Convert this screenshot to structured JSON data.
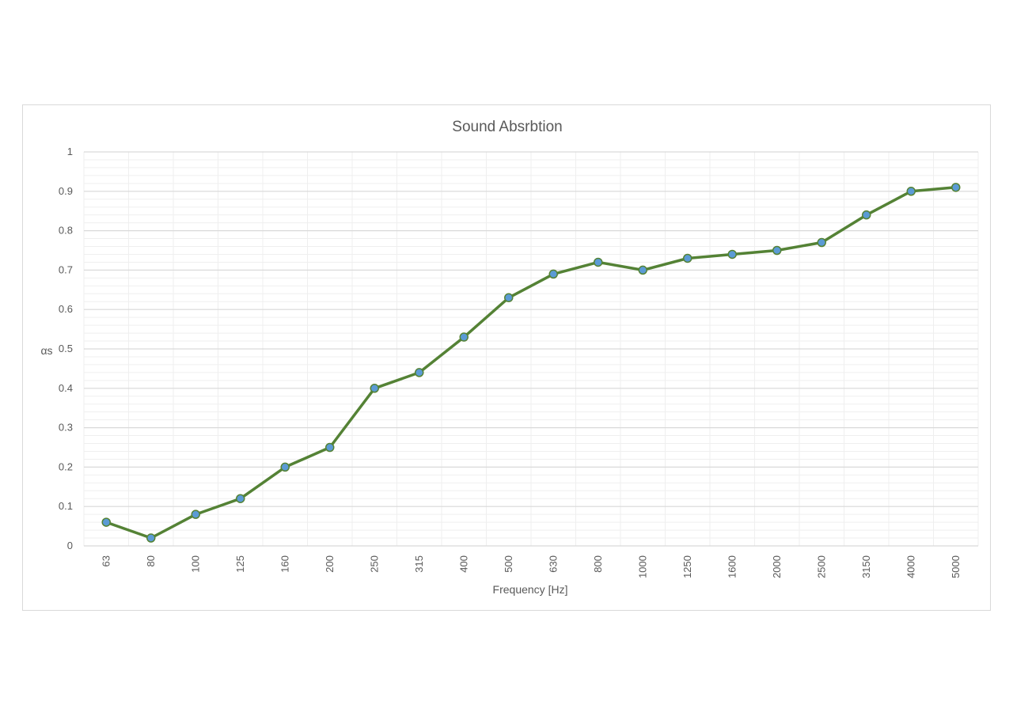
{
  "chart_data": {
    "type": "line",
    "title": "Sound Absrbtion",
    "xlabel": "Frequency [Hz]",
    "ylabel": "αs",
    "categories": [
      "63",
      "80",
      "100",
      "125",
      "160",
      "200",
      "250",
      "315",
      "400",
      "500",
      "630",
      "800",
      "1000",
      "1250",
      "1600",
      "2000",
      "2500",
      "3150",
      "4000",
      "5000"
    ],
    "series": [
      {
        "values": [
          0.06,
          0.02,
          0.08,
          0.12,
          0.2,
          0.25,
          0.4,
          0.44,
          0.53,
          0.63,
          0.69,
          0.72,
          0.7,
          0.73,
          0.74,
          0.75,
          0.77,
          0.84,
          0.9,
          0.91
        ]
      }
    ],
    "ylim": [
      0,
      1
    ],
    "yticks": [
      "0",
      "0.1",
      "0.2",
      "0.3",
      "0.4",
      "0.5",
      "0.6",
      "0.7",
      "0.8",
      "0.9",
      "1"
    ],
    "grid": true,
    "colors": {
      "line": "#548235",
      "marker_fill": "#5b9bd5",
      "marker_stroke": "#548235",
      "grid_major": "#d9d9d9",
      "grid_minor": "#efefef"
    }
  }
}
